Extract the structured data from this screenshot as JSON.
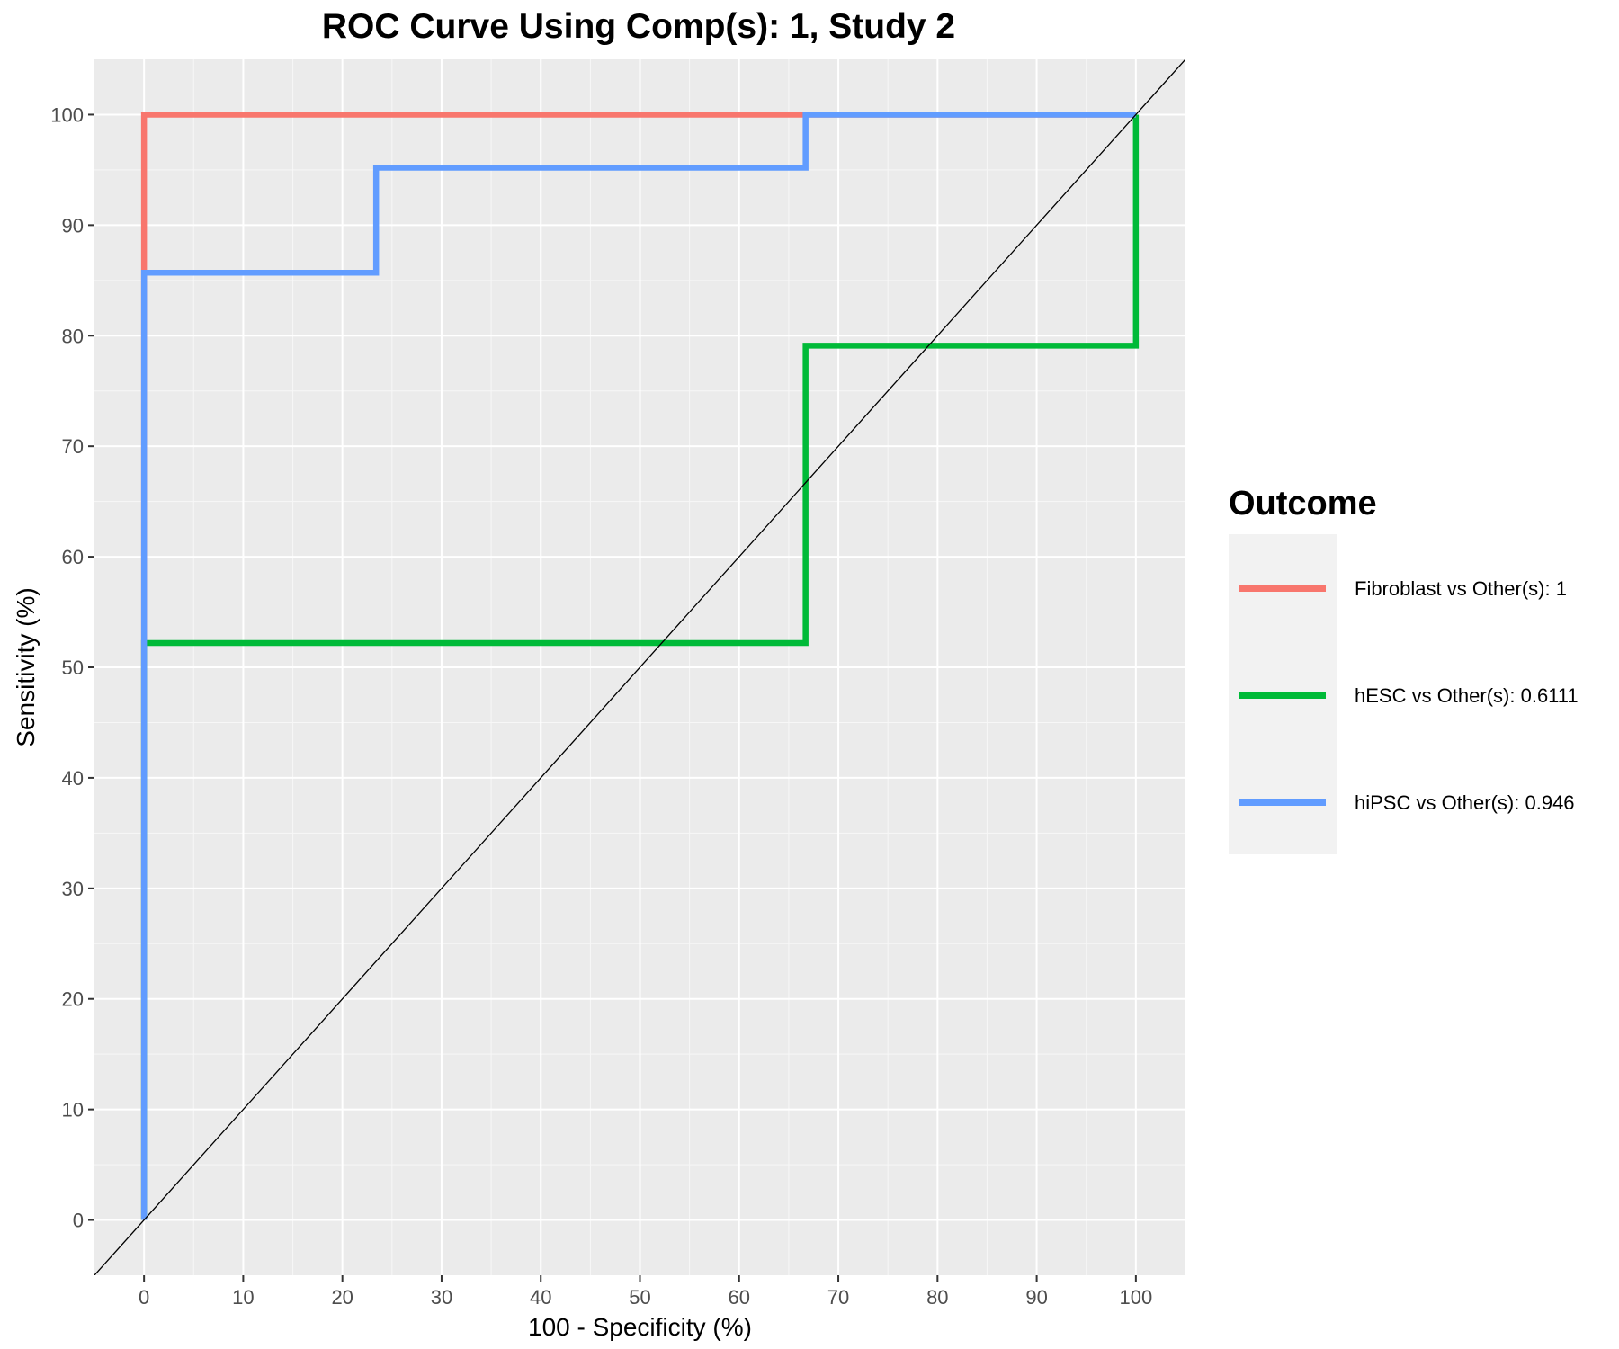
{
  "chart_data": {
    "type": "line",
    "title": "ROC Curve Using Comp(s): 1, Study 2",
    "xlabel": "100 - Specificity (%)",
    "ylabel": "Sensitivity (%)",
    "xlim": [
      -5,
      105
    ],
    "ylim": [
      -5,
      105
    ],
    "x_ticks": [
      0,
      10,
      20,
      30,
      40,
      50,
      60,
      70,
      80,
      90,
      100
    ],
    "y_ticks": [
      0,
      10,
      20,
      30,
      40,
      50,
      60,
      70,
      80,
      90,
      100
    ],
    "grid": true,
    "legend": {
      "title": "Outcome",
      "position": "right"
    },
    "series": [
      {
        "name": "Fibroblast vs Other(s): 1",
        "color": "#F8766D",
        "x": [
          0,
          0,
          66.7,
          100
        ],
        "y": [
          0,
          100,
          100,
          100
        ]
      },
      {
        "name": "hESC vs Other(s): 0.6111",
        "color": "#00BA38",
        "x": [
          0,
          0,
          66.7,
          66.7,
          100,
          100
        ],
        "y": [
          0,
          52.2,
          52.2,
          79.1,
          79.1,
          100
        ]
      },
      {
        "name": "hiPSC vs Other(s): 0.946",
        "color": "#619CFF",
        "x": [
          0,
          0,
          23.4,
          23.4,
          66.7,
          66.7,
          100
        ],
        "y": [
          0,
          85.7,
          85.7,
          95.2,
          95.2,
          100,
          100
        ]
      }
    ],
    "reference_line": {
      "x": [
        -5,
        105
      ],
      "y": [
        -5,
        105
      ],
      "color": "#000000"
    }
  }
}
